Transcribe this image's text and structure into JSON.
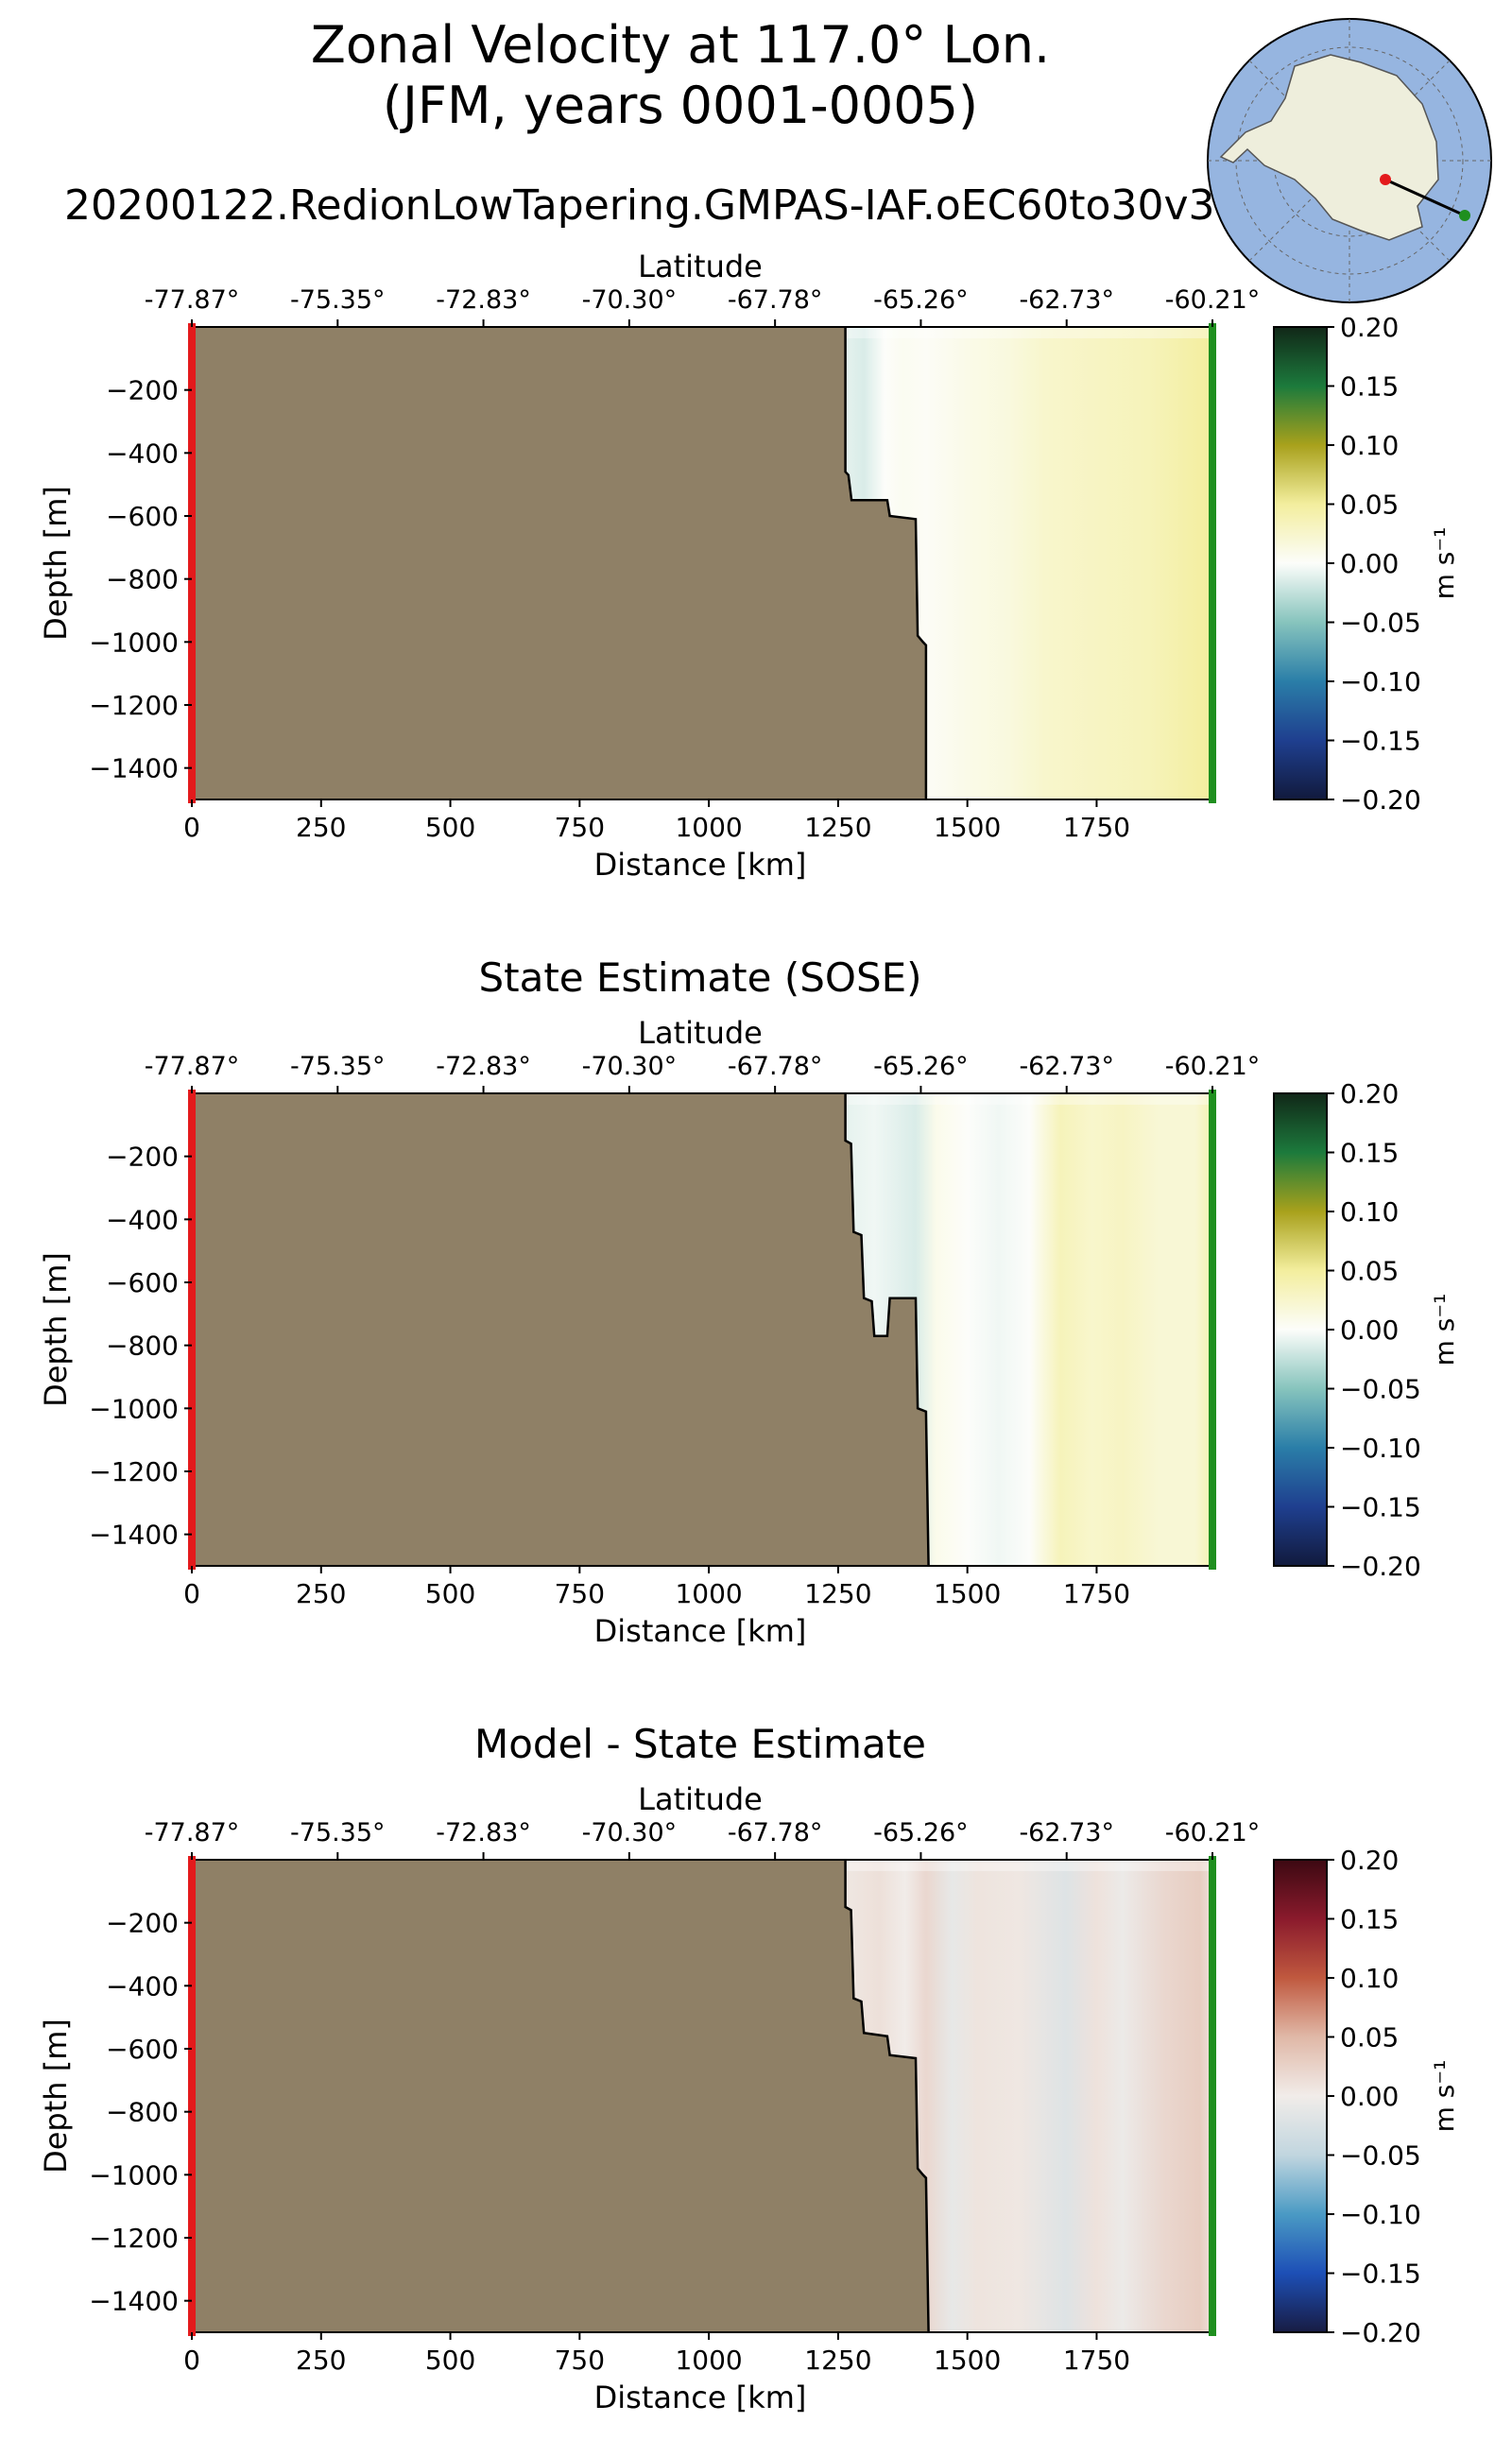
{
  "figure": {
    "title_line1": "Zonal Velocity at 117.0° Lon.",
    "title_line2": "(JFM, years 0001-0005)",
    "run_name": "20200122.RedionLowTapering.GMPAS-IAF.oEC60to30v3"
  },
  "colors": {
    "land": "#8f8066",
    "start_marker": "#e31a1c",
    "end_marker": "#1f8f1f",
    "ocean_map": "#96b5e0",
    "continent_map": "#eeeedc"
  },
  "inset_map": {
    "description_icon": "antarctica-orthographic-map-icon"
  },
  "chart_data": [
    {
      "type": "heatmap",
      "name": "model",
      "title": "",
      "xlabel": "Distance [km]",
      "ylabel": "Depth [m]",
      "top_axis_label": "Latitude",
      "top_ticks": [
        "-77.87°",
        "-75.35°",
        "-72.83°",
        "-70.30°",
        "-67.78°",
        "-65.26°",
        "-62.73°",
        "-60.21°"
      ],
      "top_tick_positions_km": [
        0,
        282,
        564,
        846,
        1128,
        1410,
        1692,
        1974
      ],
      "xlim": [
        0,
        1974
      ],
      "ylim": [
        -1500,
        0
      ],
      "xticks": [
        0,
        250,
        500,
        750,
        1000,
        1250,
        1500,
        1750
      ],
      "yticks": [
        -200,
        -400,
        -600,
        -800,
        -1000,
        -1200,
        -1400
      ],
      "colorbar": {
        "label": "m s⁻¹",
        "range": [
          -0.2,
          0.2
        ],
        "ticks": [
          "0.20",
          "0.15",
          "0.10",
          "0.05",
          "0.00",
          "−0.05",
          "−0.10",
          "−0.15",
          "−0.20"
        ],
        "cmap": "delta"
      },
      "bathymetry": [
        [
          1264,
          0
        ],
        [
          1264,
          -460
        ],
        [
          1270,
          -470
        ],
        [
          1276,
          -550
        ],
        [
          1345,
          -550
        ],
        [
          1350,
          -600
        ],
        [
          1400,
          -610
        ],
        [
          1404,
          -980
        ],
        [
          1414,
          -1000
        ],
        [
          1420,
          -1010
        ],
        [
          1420,
          -1500
        ]
      ],
      "velocity_profile": [
        {
          "x": 1264,
          "v": -0.01
        },
        {
          "x": 1300,
          "v": -0.015
        },
        {
          "x": 1340,
          "v": 0.0
        },
        {
          "x": 1375,
          "v": 0.005
        },
        {
          "x": 1420,
          "v": 0.002
        },
        {
          "x": 1500,
          "v": 0.01
        },
        {
          "x": 1580,
          "v": 0.015
        },
        {
          "x": 1650,
          "v": 0.025
        },
        {
          "x": 1750,
          "v": 0.03
        },
        {
          "x": 1850,
          "v": 0.035
        },
        {
          "x": 1974,
          "v": 0.05
        }
      ]
    },
    {
      "type": "heatmap",
      "name": "sose",
      "title": "State Estimate (SOSE)",
      "xlabel": "Distance [km]",
      "ylabel": "Depth [m]",
      "top_axis_label": "Latitude",
      "top_ticks": [
        "-77.87°",
        "-75.35°",
        "-72.83°",
        "-70.30°",
        "-67.78°",
        "-65.26°",
        "-62.73°",
        "-60.21°"
      ],
      "top_tick_positions_km": [
        0,
        282,
        564,
        846,
        1128,
        1410,
        1692,
        1974
      ],
      "xlim": [
        0,
        1974
      ],
      "ylim": [
        -1500,
        0
      ],
      "xticks": [
        0,
        250,
        500,
        750,
        1000,
        1250,
        1500,
        1750
      ],
      "yticks": [
        -200,
        -400,
        -600,
        -800,
        -1000,
        -1200,
        -1400
      ],
      "colorbar": {
        "label": "m s⁻¹",
        "range": [
          -0.2,
          0.2
        ],
        "ticks": [
          "0.20",
          "0.15",
          "0.10",
          "0.05",
          "0.00",
          "−0.05",
          "−0.10",
          "−0.15",
          "−0.20"
        ],
        "cmap": "delta"
      },
      "bathymetry": [
        [
          1264,
          0
        ],
        [
          1264,
          -150
        ],
        [
          1275,
          -160
        ],
        [
          1280,
          -440
        ],
        [
          1295,
          -450
        ],
        [
          1300,
          -650
        ],
        [
          1315,
          -660
        ],
        [
          1320,
          -770
        ],
        [
          1345,
          -770
        ],
        [
          1350,
          -650
        ],
        [
          1400,
          -650
        ],
        [
          1404,
          -1000
        ],
        [
          1420,
          -1010
        ],
        [
          1425,
          -1500
        ]
      ],
      "velocity_profile": [
        {
          "x": 1264,
          "v": -0.01
        },
        {
          "x": 1320,
          "v": -0.005
        },
        {
          "x": 1400,
          "v": -0.015
        },
        {
          "x": 1440,
          "v": 0.008
        },
        {
          "x": 1500,
          "v": 0.0
        },
        {
          "x": 1560,
          "v": -0.005
        },
        {
          "x": 1620,
          "v": 0.0
        },
        {
          "x": 1680,
          "v": 0.035
        },
        {
          "x": 1740,
          "v": 0.025
        },
        {
          "x": 1800,
          "v": 0.03
        },
        {
          "x": 1870,
          "v": 0.02
        },
        {
          "x": 1940,
          "v": 0.02
        },
        {
          "x": 1974,
          "v": 0.04
        }
      ]
    },
    {
      "type": "heatmap",
      "name": "difference",
      "title": "Model - State Estimate",
      "xlabel": "Distance [km]",
      "ylabel": "Depth [m]",
      "top_axis_label": "Latitude",
      "top_ticks": [
        "-77.87°",
        "-75.35°",
        "-72.83°",
        "-70.30°",
        "-67.78°",
        "-65.26°",
        "-62.73°",
        "-60.21°"
      ],
      "top_tick_positions_km": [
        0,
        282,
        564,
        846,
        1128,
        1410,
        1692,
        1974
      ],
      "xlim": [
        0,
        1974
      ],
      "ylim": [
        -1500,
        0
      ],
      "xticks": [
        0,
        250,
        500,
        750,
        1000,
        1250,
        1500,
        1750
      ],
      "yticks": [
        -200,
        -400,
        -600,
        -800,
        -1000,
        -1200,
        -1400
      ],
      "colorbar": {
        "label": "m s⁻¹",
        "range": [
          -0.2,
          0.2
        ],
        "ticks": [
          "0.20",
          "0.15",
          "0.10",
          "0.05",
          "0.00",
          "−0.05",
          "−0.10",
          "−0.15",
          "−0.20"
        ],
        "cmap": "balance"
      },
      "bathymetry": [
        [
          1264,
          0
        ],
        [
          1264,
          -150
        ],
        [
          1275,
          -160
        ],
        [
          1280,
          -440
        ],
        [
          1295,
          -450
        ],
        [
          1300,
          -550
        ],
        [
          1345,
          -560
        ],
        [
          1350,
          -620
        ],
        [
          1400,
          -630
        ],
        [
          1404,
          -980
        ],
        [
          1414,
          -1000
        ],
        [
          1420,
          -1010
        ],
        [
          1425,
          -1500
        ]
      ],
      "velocity_profile": [
        {
          "x": 1264,
          "v": 0.005
        },
        {
          "x": 1330,
          "v": 0.012
        },
        {
          "x": 1380,
          "v": 0.0
        },
        {
          "x": 1420,
          "v": 0.02
        },
        {
          "x": 1470,
          "v": -0.01
        },
        {
          "x": 1520,
          "v": 0.008
        },
        {
          "x": 1600,
          "v": 0.005
        },
        {
          "x": 1690,
          "v": -0.02
        },
        {
          "x": 1750,
          "v": 0.01
        },
        {
          "x": 1800,
          "v": -0.005
        },
        {
          "x": 1880,
          "v": 0.02
        },
        {
          "x": 1950,
          "v": 0.03
        },
        {
          "x": 1974,
          "v": 0.01
        }
      ]
    }
  ]
}
